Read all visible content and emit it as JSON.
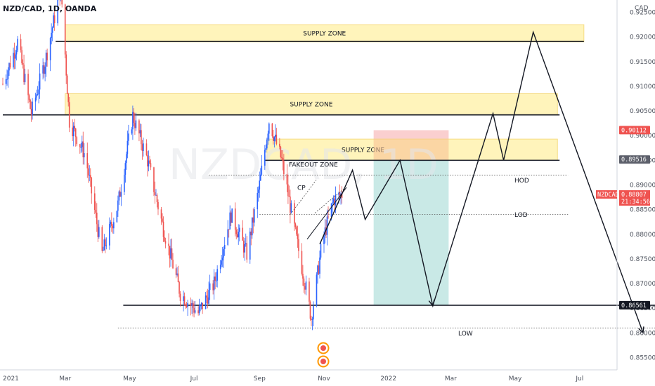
{
  "header": {
    "title": "NZD/CAD, 1D, OANDA",
    "watermark": "NZDCAD, 1D"
  },
  "colors": {
    "up": "#2962ff",
    "down": "#ef5350",
    "supply": "#fff3b0",
    "supply_border": "#f5d76e",
    "target_zone": "#b2dfdb",
    "stop_zone": "#f8bbbb",
    "stop_overlap": "#f9c79a",
    "path": "#131722",
    "tag_red": "#ef5350",
    "tag_gray": "#5d606b",
    "tag_black": "#131722"
  },
  "chart_data": {
    "type": "candlestick",
    "symbol": "NZD/CAD",
    "timeframe": "1D",
    "source": "OANDA",
    "y_axis": {
      "currency": "CAD",
      "ylim": [
        0.8525,
        0.9275
      ],
      "ticks": [
        "0.92500",
        "0.92000",
        "0.91500",
        "0.91000",
        "0.90500",
        "0.90000",
        "0.89500",
        "0.89000",
        "0.88500",
        "0.88000",
        "0.87500",
        "0.87000",
        "0.86500",
        "0.86000",
        "0.85500"
      ]
    },
    "x_axis": {
      "start": "2021-01-01",
      "ticks": [
        {
          "label": "2021",
          "date": "2021-01-01"
        },
        {
          "label": "Mar",
          "date": "2021-03-01"
        },
        {
          "label": "May",
          "date": "2021-05-01"
        },
        {
          "label": "Jul",
          "date": "2021-07-01"
        },
        {
          "label": "Sep",
          "date": "2021-09-01"
        },
        {
          "label": "Nov",
          "date": "2021-11-01"
        },
        {
          "label": "2022",
          "date": "2022-01-01"
        },
        {
          "label": "Mar",
          "date": "2022-03-01"
        },
        {
          "label": "May",
          "date": "2022-05-01"
        },
        {
          "label": "Jul",
          "date": "2022-07-01"
        }
      ]
    },
    "price_path": [
      {
        "date": "2021-01-01",
        "price": 0.9105
      },
      {
        "date": "2021-01-15",
        "price": 0.919
      },
      {
        "date": "2021-01-28",
        "price": 0.9045
      },
      {
        "date": "2021-02-10",
        "price": 0.915
      },
      {
        "date": "2021-02-25",
        "price": 0.93
      },
      {
        "date": "2021-03-05",
        "price": 0.903
      },
      {
        "date": "2021-03-20",
        "price": 0.896
      },
      {
        "date": "2021-04-05",
        "price": 0.876
      },
      {
        "date": "2021-04-20",
        "price": 0.886
      },
      {
        "date": "2021-05-04",
        "price": 0.904
      },
      {
        "date": "2021-05-18",
        "price": 0.895
      },
      {
        "date": "2021-06-01",
        "price": 0.882
      },
      {
        "date": "2021-06-18",
        "price": 0.868
      },
      {
        "date": "2021-07-05",
        "price": 0.864
      },
      {
        "date": "2021-07-20",
        "price": 0.87
      },
      {
        "date": "2021-08-05",
        "price": 0.884
      },
      {
        "date": "2021-08-20",
        "price": 0.876
      },
      {
        "date": "2021-09-01",
        "price": 0.89
      },
      {
        "date": "2021-09-10",
        "price": 0.903
      },
      {
        "date": "2021-09-22",
        "price": 0.895
      },
      {
        "date": "2021-10-05",
        "price": 0.88
      },
      {
        "date": "2021-10-15",
        "price": 0.869
      },
      {
        "date": "2021-10-20",
        "price": 0.863
      },
      {
        "date": "2021-10-30",
        "price": 0.878
      },
      {
        "date": "2021-11-10",
        "price": 0.887
      },
      {
        "date": "2021-11-18",
        "price": 0.8881
      }
    ],
    "levels": {
      "price_tag_high": "0.90112",
      "supply_top_tag": "0.89516",
      "current": {
        "symbol": "NZDCAD",
        "price": "0.88807",
        "countdown": "21:34:56"
      },
      "support_tag": "0.86561"
    },
    "zones": [
      {
        "label": "SUPPLY ZONE",
        "from": "2021-03-01",
        "to": "2022-07-05",
        "low": 0.919,
        "high": 0.9225
      },
      {
        "label": "SUPPLY ZONE",
        "from": "2021-03-01",
        "to": "2022-06-10",
        "low": 0.9042,
        "high": 0.9085
      },
      {
        "label": "SUPPLY ZONE",
        "from": "2021-09-08",
        "to": "2022-06-10",
        "low": 0.895,
        "high": 0.8993
      }
    ],
    "horizontal_lines": [
      {
        "price": 0.9191,
        "from": "2021-02-20",
        "to": "2022-07-05"
      },
      {
        "price": 0.9042,
        "from": "2021-01-01",
        "to": "2022-06-12"
      },
      {
        "price": 0.895,
        "from": "2021-09-06",
        "to": "2022-06-12"
      },
      {
        "price": 0.8656,
        "from": "2021-04-25",
        "to": "2022-09-30"
      }
    ],
    "dotted_lines": [
      {
        "label": "HOD",
        "price": 0.892,
        "from": "2021-07-15",
        "to": "2022-06-20"
      },
      {
        "label": "LOD",
        "price": 0.884,
        "from": "2021-09-01",
        "to": "2022-06-20"
      },
      {
        "label": "LOW",
        "price": 0.861,
        "from": "2021-04-20",
        "to": "2022-09-30"
      }
    ],
    "annotations": [
      "FAKEOUT ZONE",
      "CP",
      "HOD",
      "LOD",
      "LOW"
    ],
    "position": {
      "from": "2021-12-18",
      "to": "2022-02-27",
      "stop_high": 0.9011,
      "entry": 0.8952,
      "target": 0.8656
    },
    "projection": [
      {
        "date": "2021-10-28",
        "price": 0.878
      },
      {
        "date": "2021-11-28",
        "price": 0.893
      },
      {
        "date": "2021-12-10",
        "price": 0.883
      },
      {
        "date": "2022-01-12",
        "price": 0.895
      },
      {
        "date": "2022-02-12",
        "price": 0.8655
      },
      {
        "date": "2022-04-10",
        "price": 0.9045
      },
      {
        "date": "2022-04-20",
        "price": 0.895
      },
      {
        "date": "2022-05-18",
        "price": 0.921
      },
      {
        "date": "2022-08-30",
        "price": 0.86
      }
    ]
  }
}
